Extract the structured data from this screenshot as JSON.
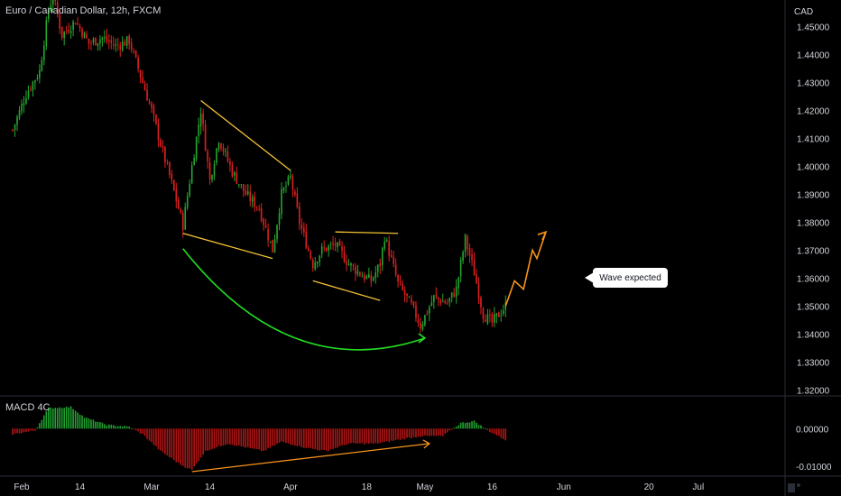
{
  "symbol_legend": "Euro / Canadian Dollar, 12h, FXCM",
  "macd_legend": "MACD 4C",
  "currency": "CAD",
  "annotation": "Wave expected",
  "colors": {
    "up": "#26a630",
    "down": "#e02020",
    "hist_pos": "#21a030",
    "hist_neg": "#b01515",
    "pattern": "#f5c335",
    "arc": "#22dd22",
    "divergence": "#f7931a",
    "projection": "#f7931a",
    "axis_text": "#d1d4dc"
  },
  "chart_data": [
    {
      "type": "candlestick",
      "title": "Euro / Canadian Dollar, 12h, FXCM",
      "ylabel": "CAD",
      "ylim": [
        1.3175,
        1.4595
      ],
      "y_ticks": [
        "1.45000",
        "1.44000",
        "1.43000",
        "1.42000",
        "1.41000",
        "1.40000",
        "1.39000",
        "1.38000",
        "1.37000",
        "1.36000",
        "1.35000",
        "1.34000",
        "1.33000",
        "1.32000"
      ],
      "x_ticks": [
        "Feb",
        "14",
        "Mar",
        "14",
        "Apr",
        "18",
        "May",
        "16",
        "Jun",
        "20",
        "Jul"
      ],
      "x_tick_dates": [
        "2020-02-01",
        "2020-02-14",
        "2020-03-01",
        "2020-03-14",
        "2020-04-01",
        "2020-04-18",
        "2020-05-01",
        "2020-05-16",
        "2020-06-01",
        "2020-06-20",
        "2020-07-01"
      ],
      "close_path": [
        [
          "2020-01-30",
          1.413
        ],
        [
          "2020-02-02",
          1.426
        ],
        [
          "2020-02-05",
          1.434
        ],
        [
          "2020-02-07",
          1.456
        ],
        [
          "2020-02-08",
          1.461
        ],
        [
          "2020-02-10",
          1.447
        ],
        [
          "2020-02-13",
          1.452
        ],
        [
          "2020-02-16",
          1.444
        ],
        [
          "2020-02-19",
          1.446
        ],
        [
          "2020-02-22",
          1.443
        ],
        [
          "2020-02-25",
          1.445
        ],
        [
          "2020-02-27",
          1.435
        ],
        [
          "2020-03-01",
          1.42
        ],
        [
          "2020-03-03",
          1.408
        ],
        [
          "2020-03-06",
          1.391
        ],
        [
          "2020-03-08",
          1.379
        ],
        [
          "2020-03-10",
          1.4
        ],
        [
          "2020-03-12",
          1.42
        ],
        [
          "2020-03-14",
          1.395
        ],
        [
          "2020-03-16",
          1.41
        ],
        [
          "2020-03-19",
          1.398
        ],
        [
          "2020-03-22",
          1.39
        ],
        [
          "2020-03-25",
          1.385
        ],
        [
          "2020-03-28",
          1.37
        ],
        [
          "2020-03-30",
          1.39
        ],
        [
          "2020-04-01",
          1.396
        ],
        [
          "2020-04-03",
          1.38
        ],
        [
          "2020-04-06",
          1.365
        ],
        [
          "2020-04-08",
          1.37
        ],
        [
          "2020-04-11",
          1.372
        ],
        [
          "2020-04-14",
          1.365
        ],
        [
          "2020-04-17",
          1.361
        ],
        [
          "2020-04-19",
          1.359
        ],
        [
          "2020-04-21",
          1.365
        ],
        [
          "2020-04-22",
          1.375
        ],
        [
          "2020-04-25",
          1.358
        ],
        [
          "2020-04-28",
          1.35
        ],
        [
          "2020-04-30",
          1.343
        ],
        [
          "2020-05-03",
          1.353
        ],
        [
          "2020-05-06",
          1.351
        ],
        [
          "2020-05-08",
          1.356
        ],
        [
          "2020-05-10",
          1.374
        ],
        [
          "2020-05-12",
          1.362
        ],
        [
          "2020-05-14",
          1.347
        ],
        [
          "2020-05-16",
          1.344
        ],
        [
          "2020-05-19",
          1.35
        ]
      ],
      "pattern_lines": [
        {
          "from": [
            "2020-03-12",
            1.4235
          ],
          "to": [
            "2020-04-01",
            1.3985
          ]
        },
        {
          "from": [
            "2020-03-08",
            1.376
          ],
          "to": [
            "2020-03-28",
            1.367
          ]
        },
        {
          "from": [
            "2020-04-11",
            1.3765
          ],
          "to": [
            "2020-04-25",
            1.376
          ]
        },
        {
          "from": [
            "2020-04-06",
            1.359
          ],
          "to": [
            "2020-04-21",
            1.352
          ]
        }
      ],
      "arc": {
        "from": [
          "2020-03-08",
          1.3705
        ],
        "control": [
          "2020-04-01",
          1.322
        ],
        "to": [
          "2020-05-01",
          1.3385
        ]
      },
      "projection": [
        [
          "2020-05-19",
          1.35
        ],
        [
          "2020-05-21",
          1.359
        ],
        [
          "2020-05-23",
          1.356
        ],
        [
          "2020-05-25",
          1.37
        ],
        [
          "2020-05-26",
          1.367
        ],
        [
          "2020-05-28",
          1.3765
        ]
      ]
    },
    {
      "type": "bar",
      "title": "MACD 4C",
      "ylim": [
        -0.0127,
        0.0085
      ],
      "y_ticks": [
        "0.00000",
        "-0.01000"
      ],
      "x_range": [
        "2020-01-30",
        "2020-05-19"
      ],
      "histogram_path": [
        [
          "2020-01-30",
          -0.0015
        ],
        [
          "2020-02-04",
          -0.0005
        ],
        [
          "2020-02-07",
          0.0055
        ],
        [
          "2020-02-12",
          0.0058
        ],
        [
          "2020-02-15",
          0.003
        ],
        [
          "2020-02-20",
          0.001
        ],
        [
          "2020-02-25",
          0.0005
        ],
        [
          "2020-02-28",
          -0.0015
        ],
        [
          "2020-03-03",
          -0.006
        ],
        [
          "2020-03-08",
          -0.01
        ],
        [
          "2020-03-10",
          -0.011
        ],
        [
          "2020-03-13",
          -0.006
        ],
        [
          "2020-03-18",
          -0.004
        ],
        [
          "2020-03-22",
          -0.005
        ],
        [
          "2020-03-26",
          -0.006
        ],
        [
          "2020-03-30",
          -0.0035
        ],
        [
          "2020-04-04",
          -0.005
        ],
        [
          "2020-04-09",
          -0.006
        ],
        [
          "2020-04-14",
          -0.004
        ],
        [
          "2020-04-20",
          -0.004
        ],
        [
          "2020-04-25",
          -0.003
        ],
        [
          "2020-04-30",
          -0.002
        ],
        [
          "2020-05-05",
          -0.002
        ],
        [
          "2020-05-09",
          0.0015
        ],
        [
          "2020-05-12",
          0.002
        ],
        [
          "2020-05-15",
          -0.0005
        ],
        [
          "2020-05-19",
          -0.003
        ]
      ],
      "divergence_line": {
        "from": [
          "2020-03-10",
          -0.0115
        ],
        "to": [
          "2020-05-02",
          -0.004
        ]
      }
    }
  ]
}
